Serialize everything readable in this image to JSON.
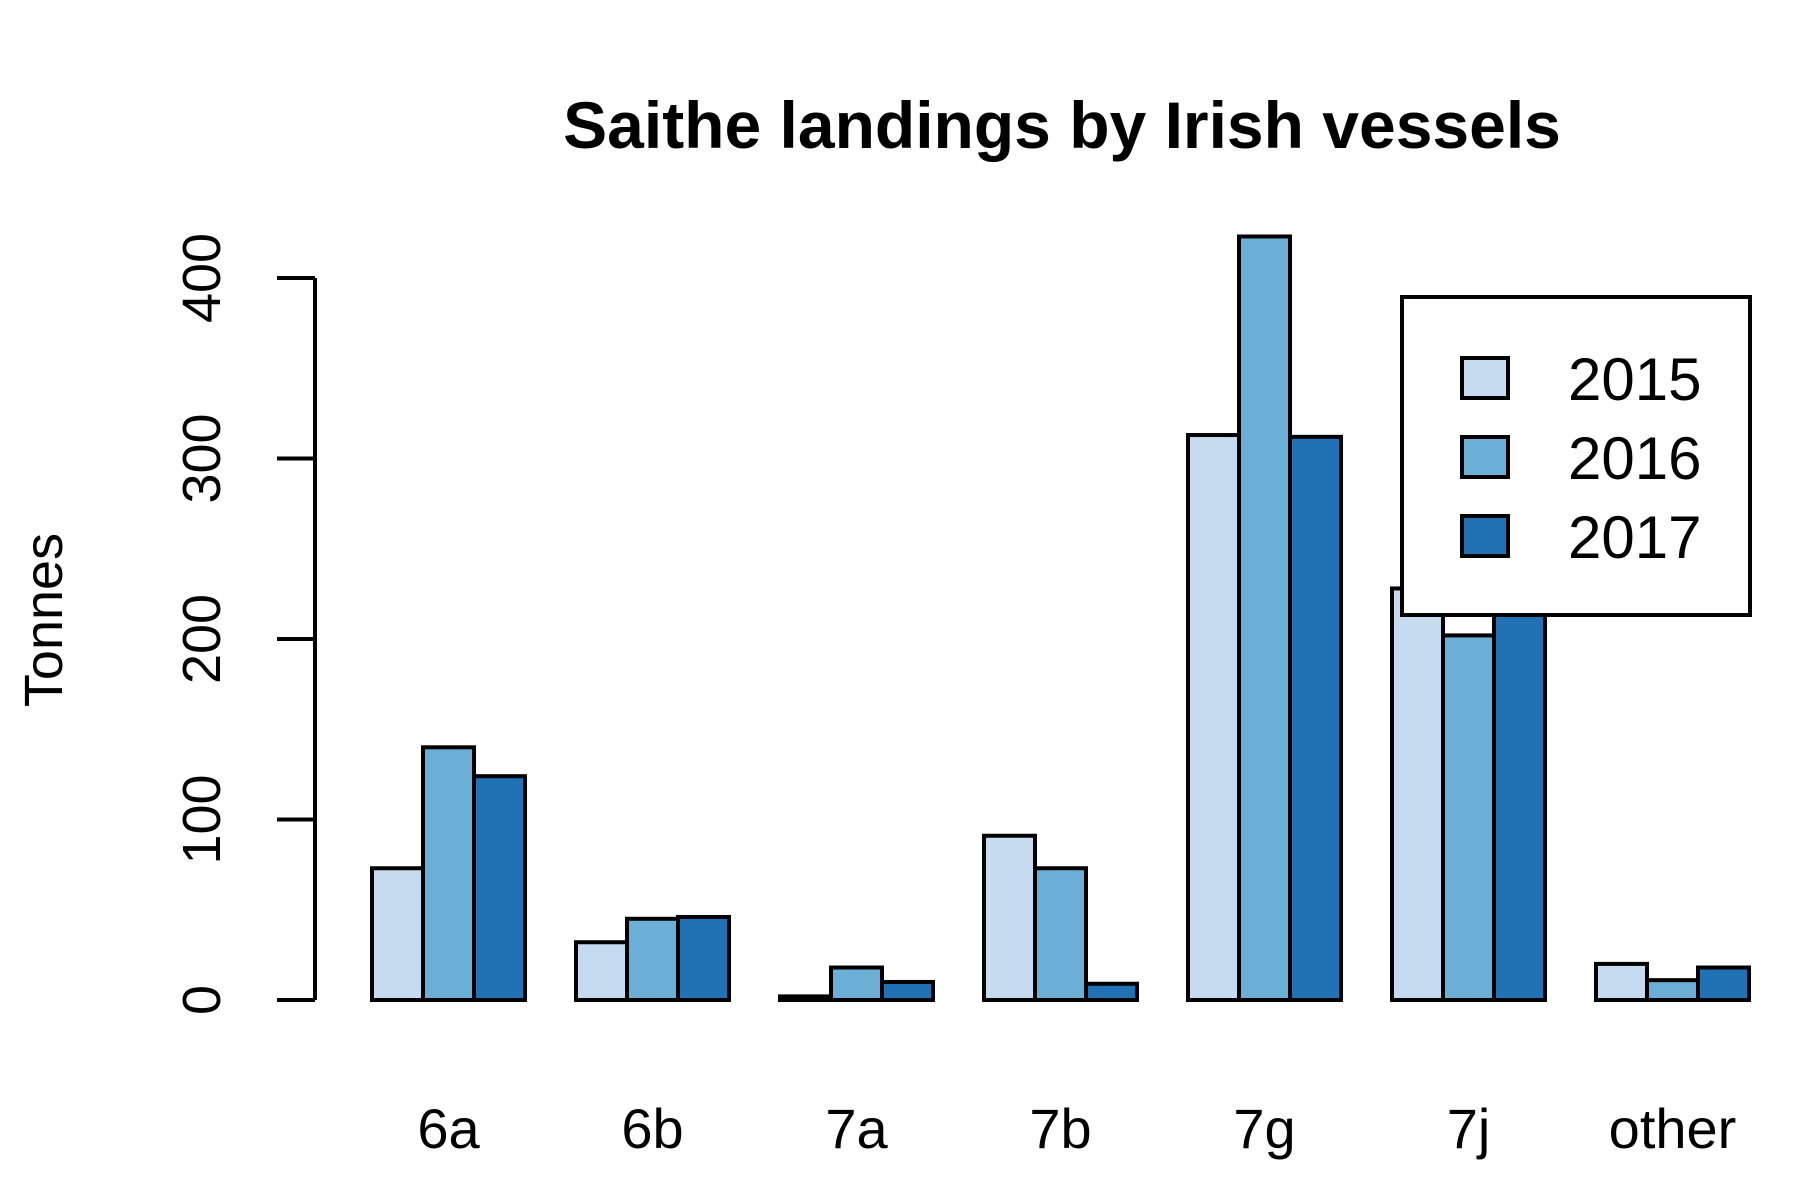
{
  "chart_data": {
    "type": "bar",
    "title": "Saithe landings by Irish vessels",
    "xlabel": "",
    "ylabel": "Tonnes",
    "ylim": [
      0,
      400
    ],
    "yticks": [
      "0",
      "100",
      "200",
      "300",
      "400"
    ],
    "categories": [
      "6a",
      "6b",
      "7a",
      "7b",
      "7g",
      "7j",
      "other"
    ],
    "series": [
      {
        "name": "2015",
        "color": "#c6dbef",
        "values": [
          73,
          32,
          2,
          91,
          313,
          228,
          20
        ]
      },
      {
        "name": "2016",
        "color": "#6baed6",
        "values": [
          140,
          45,
          18,
          73,
          423,
          202,
          11
        ]
      },
      {
        "name": "2017",
        "color": "#2171b5",
        "values": [
          124,
          46,
          10,
          9,
          312,
          230,
          18
        ]
      }
    ],
    "legend_position": "top-right",
    "grid": false
  }
}
